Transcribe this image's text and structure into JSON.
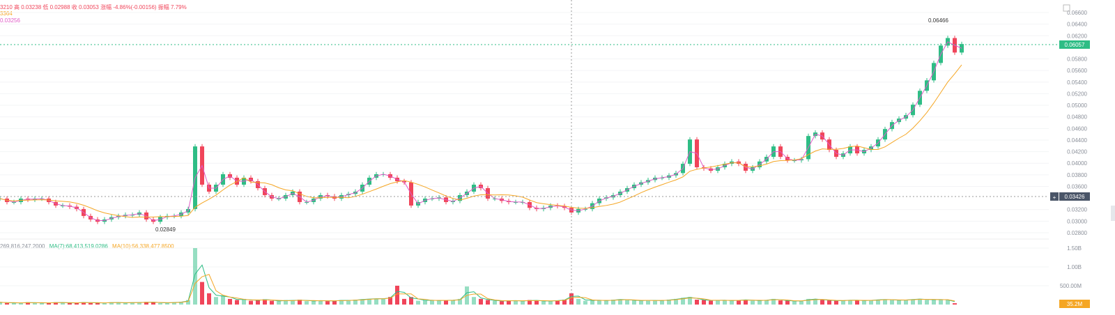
{
  "legend": {
    "ohlc_line": "3210 高 0.03238 低 0.02988 收 0.03053 涨幅 -4.86%(-0.00156) 振幅 7.79%",
    "ma_line_1": "3364",
    "ma_line_2": "0.03256",
    "volume_line_value": "269,816,247.2000",
    "volume_ma7": "MA(7):68,413,519.0286",
    "volume_ma10": "MA(10):56,338,477.8500"
  },
  "colors": {
    "up": "#2ebd85",
    "down": "#f0455a",
    "ma_fast": "#e05bc6",
    "ma_slow": "#f5a623",
    "crosshair_tag": "#4a5568"
  },
  "chart_data": {
    "type": "candlestick",
    "price_axis_ticks": [
      "0.06600",
      "0.06400",
      "0.06200",
      "0.05800",
      "0.05600",
      "0.05400",
      "0.05200",
      "0.05000",
      "0.04800",
      "0.04600",
      "0.04400",
      "0.04200",
      "0.04000",
      "0.03800",
      "0.03600",
      "0.03200",
      "0.03000",
      "0.02800"
    ],
    "price_range": [
      0.028,
      0.066
    ],
    "volume_axis_ticks": [
      "1.50B",
      "1.00B",
      "500.00M"
    ],
    "current_price": "0.06057",
    "crosshair_price": "0.03426",
    "current_volume": "35.2M",
    "high_marker": "0.06466",
    "low_marker": "0.02849",
    "closes": [
      0.0339,
      0.0333,
      0.0333,
      0.0339,
      0.0337,
      0.0339,
      0.0339,
      0.0333,
      0.0327,
      0.0327,
      0.0325,
      0.0321,
      0.0309,
      0.0303,
      0.0299,
      0.0303,
      0.0307,
      0.0309,
      0.0311,
      0.0311,
      0.0315,
      0.0303,
      0.0299,
      0.0307,
      0.0309,
      0.0309,
      0.0315,
      0.0321,
      0.0429,
      0.0363,
      0.0351,
      0.0363,
      0.0381,
      0.0375,
      0.0363,
      0.0375,
      0.0369,
      0.0357,
      0.0345,
      0.0339,
      0.0339,
      0.0345,
      0.0351,
      0.0333,
      0.0333,
      0.0339,
      0.0345,
      0.0343,
      0.0339,
      0.0345,
      0.0347,
      0.0351,
      0.0363,
      0.0375,
      0.0381,
      0.0381,
      0.0375,
      0.0369,
      0.0367,
      0.0327,
      0.0333,
      0.0339,
      0.0339,
      0.0341,
      0.0333,
      0.0335,
      0.0345,
      0.0351,
      0.0363,
      0.0357,
      0.0339,
      0.0339,
      0.0335,
      0.0333,
      0.0333,
      0.0333,
      0.0323,
      0.0321,
      0.0323,
      0.0327,
      0.0326,
      0.0323,
      0.0315,
      0.0321,
      0.0321,
      0.0331,
      0.0339,
      0.0341,
      0.0345,
      0.0351,
      0.0357,
      0.0363,
      0.0367,
      0.0371,
      0.0375,
      0.0375,
      0.0379,
      0.0383,
      0.0399,
      0.0441,
      0.0393,
      0.0391,
      0.0387,
      0.0393,
      0.0399,
      0.0403,
      0.0399,
      0.0387,
      0.0393,
      0.0403,
      0.0411,
      0.0429,
      0.0411,
      0.0405,
      0.0405,
      0.0407,
      0.0447,
      0.0453,
      0.0441,
      0.0423,
      0.0411,
      0.0417,
      0.0429,
      0.0417,
      0.0423,
      0.0429,
      0.0441,
      0.0459,
      0.0471,
      0.0477,
      0.0483,
      0.0501,
      0.0525,
      0.0543,
      0.0573,
      0.0603,
      0.0616,
      0.0591,
      0.06057
    ],
    "volumes_millions": [
      60,
      40,
      50,
      40,
      60,
      40,
      50,
      40,
      60,
      50,
      40,
      50,
      60,
      40,
      50,
      40,
      60,
      50,
      40,
      60,
      50,
      70,
      60,
      40,
      50,
      60,
      70,
      120,
      1500,
      600,
      300,
      200,
      250,
      150,
      120,
      150,
      100,
      120,
      140,
      100,
      90,
      120,
      100,
      130,
      90,
      100,
      110,
      90,
      100,
      120,
      100,
      130,
      140,
      150,
      160,
      150,
      200,
      500,
      150,
      200,
      100,
      120,
      110,
      100,
      120,
      110,
      150,
      480,
      200,
      150,
      120,
      100,
      90,
      110,
      100,
      90,
      120,
      100,
      90,
      100,
      110,
      130,
      300,
      150,
      100,
      120,
      110,
      100,
      130,
      140,
      120,
      110,
      100,
      120,
      100,
      110,
      130,
      150,
      180,
      200,
      130,
      120,
      100,
      120,
      110,
      100,
      120,
      130,
      100,
      110,
      120,
      150,
      110,
      100,
      90,
      100,
      150,
      140,
      120,
      110,
      100,
      110,
      120,
      110,
      100,
      120,
      130,
      140,
      120,
      110,
      130,
      140,
      150,
      120,
      140,
      130,
      120,
      35.2
    ]
  }
}
